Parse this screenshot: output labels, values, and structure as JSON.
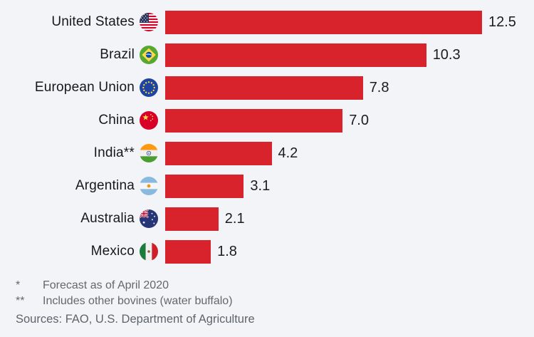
{
  "chart_data": {
    "type": "bar",
    "orientation": "horizontal",
    "title": "",
    "xlabel": "",
    "ylabel": "",
    "grid": false,
    "legend": false,
    "categories": [
      "United States",
      "Brazil",
      "European Union",
      "China",
      "India**",
      "Argentina",
      "Australia",
      "Mexico"
    ],
    "values": [
      12.5,
      10.3,
      7.8,
      7.0,
      4.2,
      3.1,
      2.1,
      1.8
    ],
    "value_labels": [
      "12.5",
      "10.3",
      "7.8",
      "7.0",
      "4.2",
      "3.1",
      "2.1",
      "1.8"
    ],
    "flags": [
      "us",
      "br",
      "eu",
      "cn",
      "in",
      "ar",
      "au",
      "mx"
    ],
    "xlim": [
      0,
      12.5
    ],
    "bar_color": "#d8232d",
    "background_color": "#f2f4f7"
  },
  "footnotes": [
    {
      "marker": "*",
      "text": "Forecast as of April 2020"
    },
    {
      "marker": "**",
      "text": "Includes other bovines (water buffalo)"
    }
  ],
  "sources": "Sources: FAO, U.S. Department of Agriculture"
}
